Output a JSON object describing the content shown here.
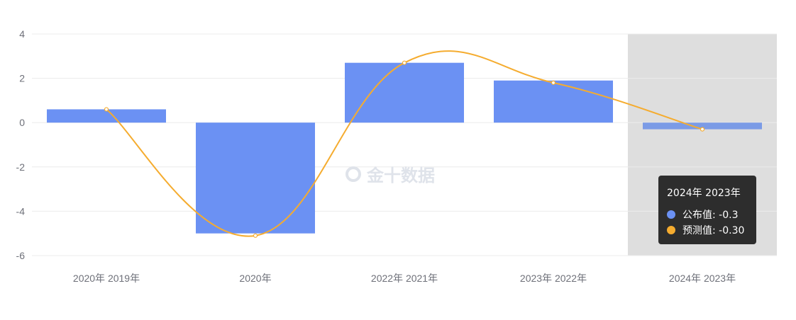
{
  "chart_data": {
    "type": "bar+line",
    "categories": [
      "2020年 2019年",
      "2020年",
      "2022年 2021年",
      "2023年 2022年",
      "2024年 2023年"
    ],
    "series": [
      {
        "name": "公布值",
        "type": "bar",
        "values": [
          0.6,
          -5.0,
          2.7,
          1.9,
          -0.3
        ],
        "color": "#6b91f3"
      },
      {
        "name": "预测值",
        "type": "line",
        "smooth": true,
        "values": [
          0.6,
          -5.1,
          2.7,
          1.8,
          -0.3
        ],
        "color": "#f5ac2f"
      }
    ],
    "ylim": [
      -6,
      4
    ],
    "yticks": [
      4,
      2,
      0,
      -2,
      -4,
      -6
    ],
    "grid": true,
    "highlighted_category": 4
  },
  "tooltip": {
    "title": "2024年 2023年",
    "rows": [
      {
        "label": "公布值: -0.3",
        "color": "#6b91f3"
      },
      {
        "label": "预测值: -0.30",
        "color": "#f5ac2f"
      }
    ]
  },
  "watermark": "金十数据"
}
